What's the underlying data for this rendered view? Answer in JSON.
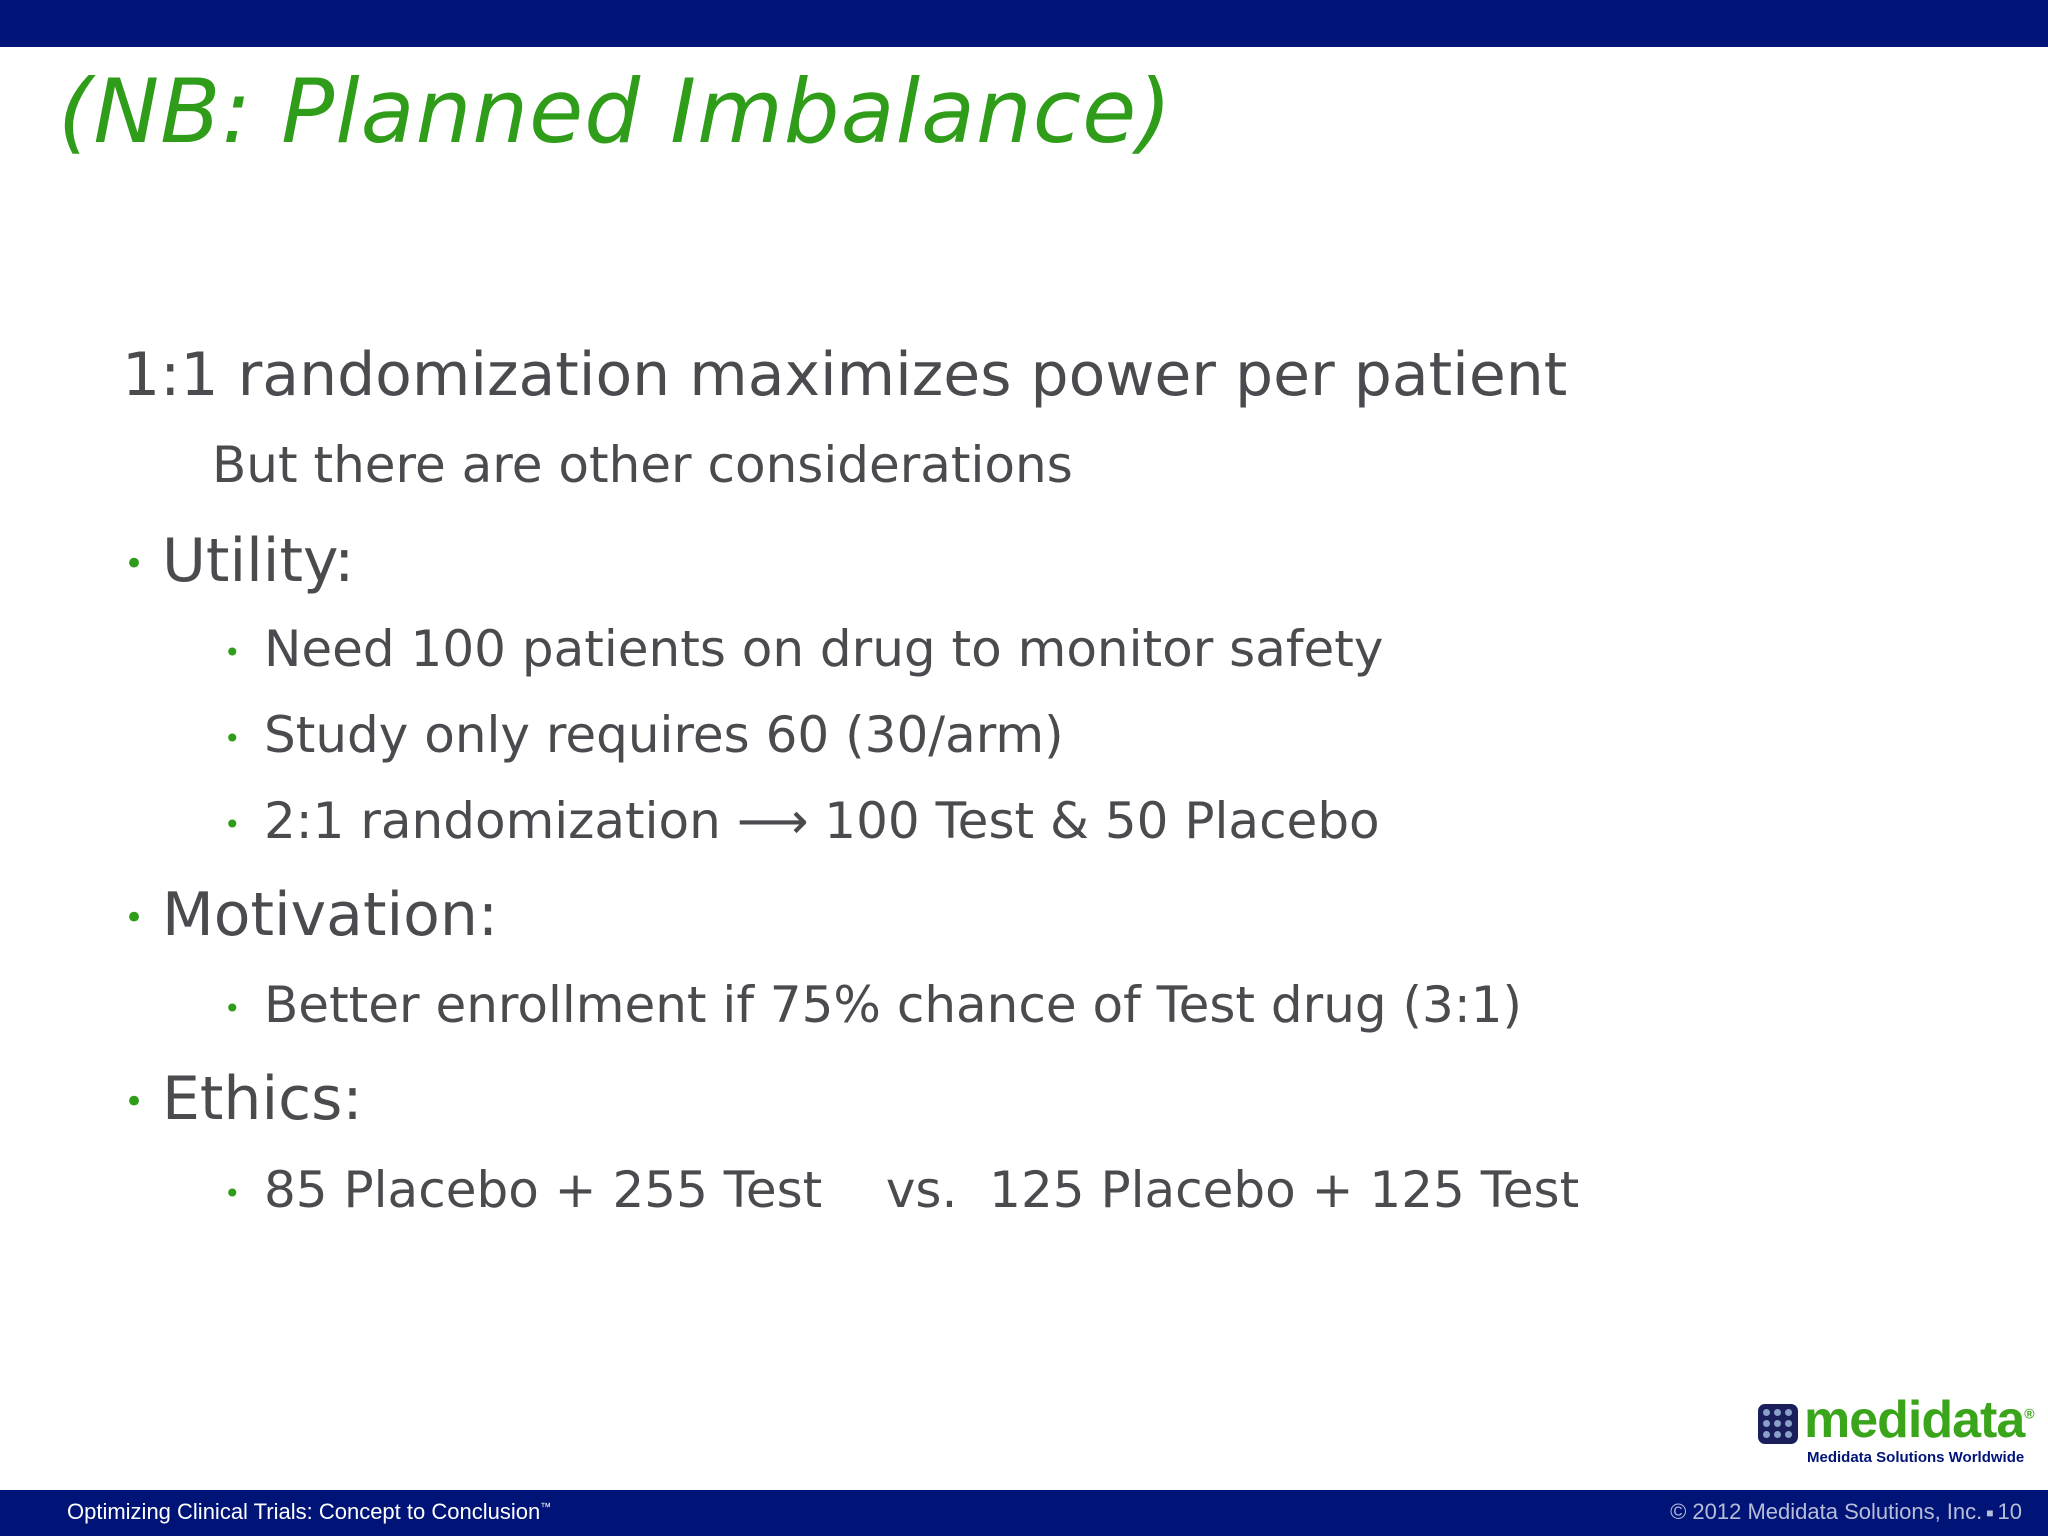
{
  "slide": {
    "title": "(NB:  Planned Imbalance)",
    "intro": "1:1 randomization maximizes power per patient",
    "intro_sub": "But there are other considerations",
    "sections": [
      {
        "heading": "Utility:",
        "items": [
          "Need 100 patients on drug to monitor safety",
          "Study only requires 60 (30/arm)",
          "2:1 randomization ⟶ 100 Test &  50 Placebo"
        ]
      },
      {
        "heading": "Motivation:",
        "items": [
          "Better enrollment if 75% chance of Test drug (3:1)"
        ]
      },
      {
        "heading": "Ethics:",
        "items": [
          "85 Placebo + 255 Test    vs.  125 Placebo + 125 Test"
        ]
      }
    ]
  },
  "footer": {
    "course_title": "Optimizing Clinical Trials: Concept to Conclusion",
    "trademark": "™",
    "copyright": "© 2012 Medidata Solutions, Inc.",
    "page_number": "10"
  },
  "logo": {
    "wordmark": "medidata",
    "registered": "®",
    "tagline": "Medidata Solutions Worldwide"
  },
  "colors": {
    "header_bar": "#001478",
    "title": "#2f9c1a",
    "bullet": "#2f9c1a",
    "body_text": "#4a4a4f"
  }
}
